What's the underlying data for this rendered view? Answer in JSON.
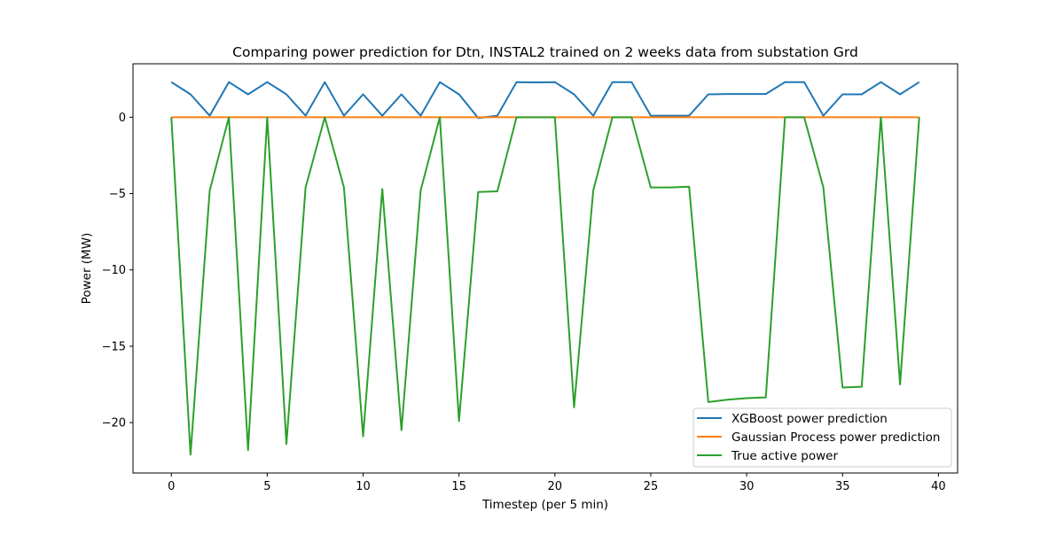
{
  "chart_data": {
    "type": "line",
    "title": "Comparing power prediction for Dtn, INSTAL2 trained on 2 weeks data from substation Grd",
    "xlabel": "Timestep (per 5 min)",
    "ylabel": "Power (MW)",
    "xlim": [
      -2,
      41
    ],
    "ylim": [
      -23.3,
      3.5
    ],
    "xticks": [
      0,
      5,
      10,
      15,
      20,
      25,
      30,
      35,
      40
    ],
    "yticks": [
      0,
      -5,
      -10,
      -15,
      -20
    ],
    "grid": false,
    "legend_position": "lower-right",
    "x": [
      0,
      1,
      2,
      3,
      4,
      5,
      6,
      7,
      8,
      9,
      10,
      11,
      12,
      13,
      14,
      15,
      16,
      17,
      18,
      19,
      20,
      21,
      22,
      23,
      24,
      25,
      26,
      27,
      28,
      29,
      30,
      31,
      32,
      33,
      34,
      35,
      36,
      37,
      38,
      39
    ],
    "series": [
      {
        "name": "XGBoost power prediction",
        "color": "#1f77b4",
        "values": [
          2.3,
          1.5,
          0.1,
          2.3,
          1.5,
          2.3,
          1.5,
          0.1,
          2.3,
          0.1,
          1.5,
          0.1,
          1.5,
          0.1,
          2.3,
          1.5,
          -0.05,
          0.1,
          2.3,
          2.28,
          2.3,
          1.5,
          0.1,
          2.3,
          2.3,
          0.1,
          0.1,
          0.1,
          1.5,
          1.52,
          1.52,
          1.52,
          2.3,
          2.3,
          0.1,
          1.5,
          1.5,
          2.3,
          1.5,
          2.3
        ]
      },
      {
        "name": "Gaussian Process power prediction",
        "color": "#ff7f0e",
        "values": [
          0,
          0,
          0,
          0,
          0,
          0,
          0,
          0,
          0,
          0,
          0,
          0,
          0,
          0,
          0,
          0,
          0,
          0,
          0,
          0,
          0,
          0,
          0,
          0,
          0,
          0,
          0,
          0,
          0,
          0,
          0,
          0,
          0,
          0,
          0,
          0,
          0,
          0,
          0,
          0
        ]
      },
      {
        "name": "True active power",
        "color": "#2ca02c",
        "values": [
          0,
          -22.1,
          -4.8,
          0,
          -21.8,
          0,
          -21.4,
          -4.6,
          0,
          -4.6,
          -20.9,
          -4.7,
          -20.5,
          -4.8,
          0,
          -19.9,
          -4.9,
          -4.85,
          0,
          0,
          0,
          -19,
          -4.8,
          0,
          0,
          -4.6,
          -4.6,
          -4.55,
          -18.65,
          -18.5,
          -18.4,
          -18.35,
          0,
          0,
          -4.6,
          -17.7,
          -17.65,
          0,
          -17.5,
          0
        ]
      }
    ]
  }
}
